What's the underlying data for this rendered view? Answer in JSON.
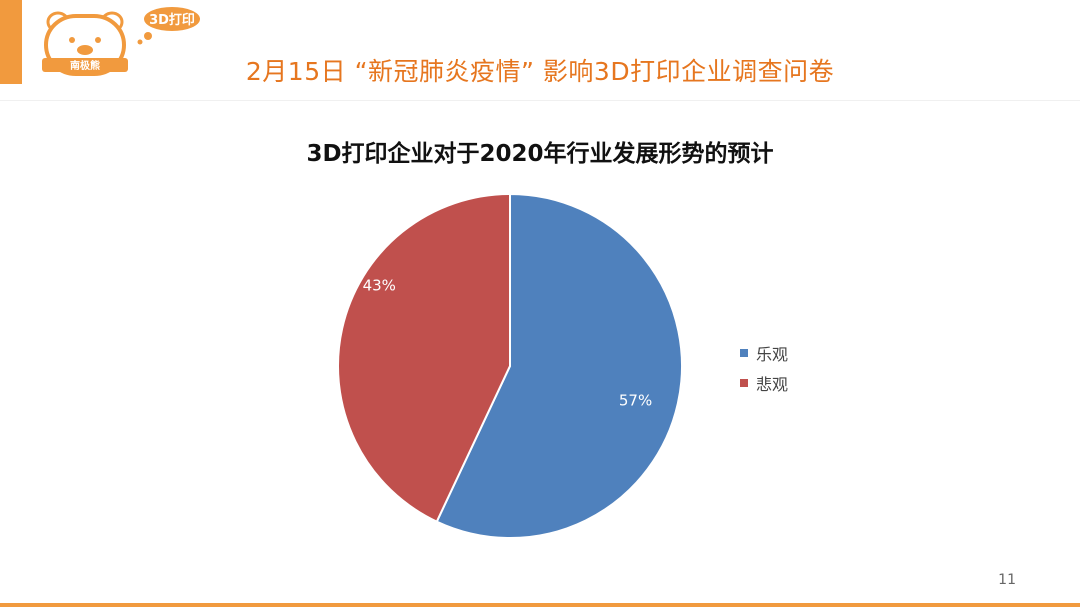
{
  "header": {
    "logo_badge": "3D打印",
    "logo_name": "南极熊",
    "title": "2月15日 “新冠肺炎疫情” 影响3D打印企业调查问卷"
  },
  "chart_data": {
    "type": "pie",
    "title": "3D打印企业对于2020年行业发展形势的预计",
    "categories": [
      "乐观",
      "悲观"
    ],
    "values": [
      57,
      43
    ],
    "value_labels": [
      "57%",
      "43%"
    ],
    "colors": [
      "#4f81bd",
      "#c0504d"
    ],
    "legend_position": "right"
  },
  "footer": {
    "page_number": "11"
  },
  "colors": {
    "accent": "#f19a3e",
    "title": "#e6761f"
  }
}
